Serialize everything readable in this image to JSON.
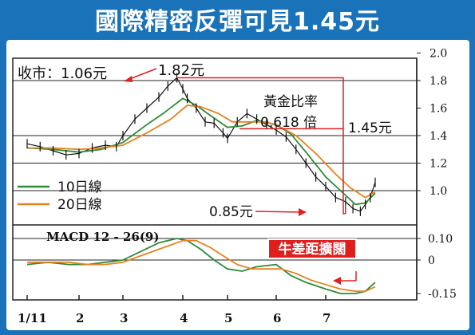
{
  "title": "國際精密反彈可見1.45元",
  "chart_data": [
    {
      "type": "line",
      "name": "price",
      "x_ticks": [
        "1/11",
        "2",
        "3",
        "4",
        "5",
        "6",
        "7"
      ],
      "yticks_right": [
        "2.0",
        "1.8",
        "1.6",
        "1.4",
        "1.2",
        "1.0"
      ],
      "ylim": [
        0.7,
        2.0
      ],
      "y_grid": [
        1.8,
        1.4,
        1.2,
        1.0
      ],
      "close_label": "收市：1.06元",
      "annotations": {
        "high": "1.82元",
        "low": "0.85元",
        "target": "1.45元",
        "ratio_name": "黃金比率",
        "ratio_value": "0.618 倍"
      },
      "legend": [
        {
          "label": "10日線",
          "color": "#2e8b3a"
        },
        {
          "label": "20日線",
          "color": "#e8821e"
        }
      ],
      "series": [
        {
          "name": "price",
          "color": "#111111",
          "x": [
            0.0,
            0.25,
            0.5,
            0.75,
            1.0,
            1.3,
            1.6,
            1.85,
            2.0,
            2.2,
            2.4,
            2.6,
            2.75,
            2.9,
            3.0,
            3.1,
            3.3,
            3.5,
            3.7,
            3.9,
            4.0,
            4.2,
            4.4,
            4.6,
            4.8,
            5.0,
            5.2,
            5.4,
            5.6,
            5.8,
            6.0,
            6.2,
            6.4,
            6.55,
            6.7,
            6.8,
            6.9,
            7.0
          ],
          "y": [
            1.34,
            1.32,
            1.29,
            1.26,
            1.27,
            1.31,
            1.33,
            1.32,
            1.4,
            1.52,
            1.6,
            1.68,
            1.76,
            1.82,
            1.74,
            1.67,
            1.6,
            1.5,
            1.49,
            1.42,
            1.38,
            1.5,
            1.56,
            1.52,
            1.48,
            1.44,
            1.39,
            1.3,
            1.2,
            1.1,
            1.03,
            0.95,
            0.92,
            0.87,
            0.85,
            0.9,
            0.95,
            1.06
          ]
        },
        {
          "name": "10日線",
          "color": "#2e8b3a",
          "x": [
            0.0,
            0.5,
            1.0,
            1.5,
            2.0,
            2.4,
            2.7,
            3.0,
            3.3,
            3.6,
            4.0,
            4.3,
            4.6,
            5.0,
            5.3,
            5.6,
            6.0,
            6.3,
            6.6,
            6.8,
            7.0
          ],
          "y": [
            1.31,
            1.3,
            1.28,
            1.3,
            1.35,
            1.48,
            1.57,
            1.67,
            1.62,
            1.55,
            1.46,
            1.47,
            1.51,
            1.48,
            1.41,
            1.28,
            1.1,
            1.0,
            0.9,
            0.91,
            0.98
          ]
        },
        {
          "name": "20日線",
          "color": "#e8821e",
          "x": [
            0.0,
            0.5,
            1.0,
            1.5,
            2.0,
            2.4,
            2.8,
            3.1,
            3.4,
            3.8,
            4.1,
            4.4,
            4.8,
            5.1,
            5.4,
            5.8,
            6.2,
            6.5,
            6.8,
            7.0
          ],
          "y": [
            1.31,
            1.31,
            1.3,
            1.31,
            1.33,
            1.42,
            1.52,
            1.62,
            1.61,
            1.56,
            1.5,
            1.5,
            1.5,
            1.46,
            1.4,
            1.27,
            1.12,
            1.02,
            0.95,
            0.99
          ]
        }
      ]
    },
    {
      "type": "line",
      "name": "macd",
      "title": "MACD 12 - 26(9)",
      "yticks_right": [
        "0.10",
        "0",
        "-0.15"
      ],
      "ylim": [
        -0.2,
        0.15
      ],
      "label_box": "牛差距擴闊",
      "series": [
        {
          "name": "MACD",
          "color": "#2e8b3a",
          "x": [
            0.0,
            0.4,
            0.8,
            1.2,
            1.6,
            2.0,
            2.3,
            2.6,
            2.9,
            3.1,
            3.4,
            3.7,
            4.0,
            4.3,
            4.6,
            5.0,
            5.3,
            5.6,
            6.0,
            6.3,
            6.6,
            6.8,
            7.0
          ],
          "y": [
            -0.02,
            -0.01,
            -0.02,
            -0.02,
            -0.01,
            0.0,
            0.04,
            0.08,
            0.1,
            0.09,
            0.05,
            0.0,
            -0.04,
            -0.05,
            -0.03,
            -0.02,
            -0.07,
            -0.1,
            -0.13,
            -0.15,
            -0.15,
            -0.14,
            -0.1
          ]
        },
        {
          "name": "Signal",
          "color": "#e8821e",
          "x": [
            0.0,
            0.4,
            0.8,
            1.2,
            1.6,
            2.0,
            2.3,
            2.6,
            3.0,
            3.3,
            3.6,
            3.9,
            4.2,
            4.5,
            4.8,
            5.1,
            5.4,
            5.7,
            6.0,
            6.3,
            6.6,
            6.8,
            7.0
          ],
          "y": [
            -0.01,
            -0.01,
            -0.01,
            -0.02,
            -0.02,
            -0.01,
            0.02,
            0.05,
            0.09,
            0.09,
            0.06,
            0.02,
            -0.02,
            -0.04,
            -0.04,
            -0.04,
            -0.06,
            -0.09,
            -0.11,
            -0.13,
            -0.14,
            -0.14,
            -0.12
          ]
        }
      ]
    }
  ]
}
